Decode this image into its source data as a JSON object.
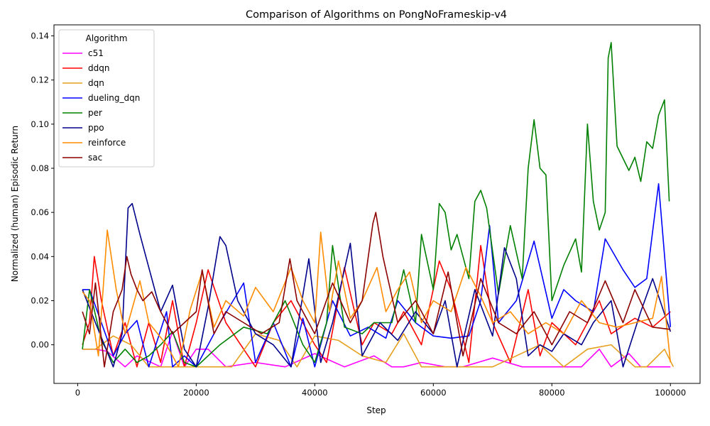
{
  "chart_data": {
    "type": "line",
    "title": "Comparison of Algorithms on PongNoFrameskip-v4",
    "xlabel": "Step",
    "ylabel": "Normalized (human) Episodic Return",
    "xlim": [
      -4000,
      105000
    ],
    "ylim": [
      -0.0175,
      0.145
    ],
    "x_ticks": [
      0,
      20000,
      40000,
      60000,
      80000,
      100000
    ],
    "x_tick_labels": [
      "0",
      "20000",
      "40000",
      "60000",
      "80000",
      "100000"
    ],
    "y_ticks": [
      0.0,
      0.02,
      0.04,
      0.06,
      0.08,
      0.1,
      0.12,
      0.14
    ],
    "y_tick_labels": [
      "0.00",
      "0.02",
      "0.04",
      "0.06",
      "0.08",
      "0.10",
      "0.12",
      "0.14"
    ],
    "grid": false,
    "legend": {
      "title": "Algorithm",
      "placement": "top-left"
    },
    "series": [
      {
        "name": "c51",
        "color": "#ff00ff",
        "x": [
          800,
          3000,
          5000,
          8000,
          10000,
          14000,
          16000,
          18000,
          20000,
          22000,
          25000,
          30000,
          35000,
          40000,
          45000,
          50000,
          53000,
          55000,
          58000,
          62000,
          65000,
          70000,
          75000,
          80000,
          85000,
          88000,
          90000,
          93000,
          95000,
          98000,
          100000
        ],
        "values": [
          -0.002,
          -0.002,
          -0.003,
          -0.01,
          -0.005,
          -0.01,
          0.006,
          -0.01,
          -0.002,
          -0.002,
          -0.01,
          -0.008,
          -0.01,
          -0.004,
          -0.01,
          -0.005,
          -0.01,
          -0.01,
          -0.008,
          -0.01,
          -0.01,
          -0.006,
          -0.01,
          -0.01,
          -0.01,
          -0.002,
          -0.01,
          -0.004,
          -0.01,
          -0.01,
          -0.01
        ]
      },
      {
        "name": "ddqn",
        "color": "#ff0000",
        "x": [
          800,
          2000,
          2800,
          4000,
          6000,
          8000,
          10000,
          12000,
          14000,
          16000,
          18000,
          20000,
          22000,
          25000,
          28000,
          30000,
          33000,
          36000,
          40000,
          42000,
          45000,
          48000,
          50000,
          53000,
          55000,
          58000,
          61000,
          63000,
          66000,
          68000,
          70000,
          73000,
          76000,
          78000,
          80000,
          84000,
          88000,
          90000,
          94000,
          97000,
          100000
        ],
        "values": [
          0.0,
          0.01,
          0.04,
          0.02,
          -0.005,
          0.01,
          -0.01,
          0.01,
          -0.008,
          0.02,
          -0.01,
          0.01,
          0.034,
          0.01,
          -0.002,
          -0.01,
          0.01,
          0.02,
          0.0,
          -0.008,
          0.035,
          0.0,
          0.01,
          0.005,
          0.015,
          0.0,
          0.038,
          0.025,
          -0.008,
          0.045,
          0.01,
          -0.008,
          0.025,
          -0.005,
          0.01,
          0.0,
          0.02,
          0.005,
          0.012,
          0.008,
          0.015
        ]
      },
      {
        "name": "dqn",
        "color": "#e6a01e",
        "x": [
          800,
          3000,
          6000,
          9000,
          12000,
          15000,
          18000,
          22000,
          26000,
          30000,
          34000,
          37000,
          40000,
          44000,
          48000,
          52000,
          55000,
          58000,
          62000,
          66000,
          70000,
          74000,
          78000,
          82000,
          86000,
          90000,
          94000,
          96000,
          99000,
          100500
        ],
        "values": [
          -0.002,
          -0.002,
          0.004,
          0.0,
          -0.01,
          -0.01,
          -0.01,
          -0.01,
          -0.01,
          0.005,
          0.002,
          -0.01,
          0.004,
          0.002,
          -0.005,
          -0.008,
          0.005,
          -0.01,
          -0.01,
          -0.01,
          -0.01,
          -0.005,
          0.0,
          -0.01,
          -0.002,
          0.0,
          -0.01,
          -0.01,
          -0.002,
          -0.01
        ]
      },
      {
        "name": "dueling_dqn",
        "color": "#0000ff",
        "x": [
          800,
          2000,
          4000,
          6000,
          8000,
          10000,
          12000,
          15000,
          16000,
          18000,
          20000,
          24000,
          28000,
          30000,
          33000,
          36000,
          38000,
          40000,
          43000,
          46000,
          49000,
          52000,
          54000,
          57000,
          60000,
          63000,
          66000,
          68000,
          69500,
          71000,
          74000,
          77000,
          80000,
          82000,
          84000,
          87000,
          89000,
          92000,
          94000,
          96000,
          98000,
          100000
        ],
        "values": [
          0.025,
          0.025,
          0.01,
          -0.005,
          0.005,
          0.011,
          -0.01,
          0.015,
          -0.01,
          -0.005,
          -0.01,
          0.01,
          0.028,
          -0.008,
          0.01,
          -0.01,
          0.012,
          -0.01,
          0.02,
          0.004,
          0.008,
          0.003,
          0.02,
          0.01,
          0.004,
          0.003,
          0.004,
          0.02,
          0.054,
          0.01,
          0.02,
          0.047,
          0.012,
          0.025,
          0.02,
          0.015,
          0.048,
          0.034,
          0.026,
          0.03,
          0.073,
          0.008
        ]
      },
      {
        "name": "per",
        "color": "#008000",
        "x": [
          800,
          2000,
          4000,
          6000,
          8000,
          10000,
          12000,
          14000,
          16000,
          18000,
          20000,
          24000,
          28000,
          32000,
          35000,
          38000,
          40000,
          42000,
          43000,
          45000,
          48000,
          50000,
          53000,
          55000,
          57000,
          58000,
          60000,
          61000,
          62000,
          63000,
          64000,
          66000,
          67000,
          68000,
          69000,
          71000,
          73000,
          75000,
          76000,
          77000,
          78000,
          79000,
          80000,
          82000,
          84000,
          85000,
          86000,
          87000,
          88000,
          89000,
          89500,
          90000,
          91000,
          93000,
          94000,
          95000,
          96000,
          97000,
          98000,
          99000,
          99800
        ],
        "values": [
          -0.002,
          0.025,
          0.002,
          -0.008,
          -0.002,
          -0.008,
          -0.005,
          0.0,
          0.006,
          -0.008,
          -0.01,
          0.0,
          0.008,
          0.005,
          0.02,
          0.0,
          -0.008,
          0.01,
          0.045,
          0.008,
          0.005,
          0.01,
          0.01,
          0.034,
          0.01,
          0.05,
          0.025,
          0.064,
          0.06,
          0.043,
          0.05,
          0.03,
          0.065,
          0.07,
          0.062,
          0.023,
          0.054,
          0.03,
          0.08,
          0.102,
          0.08,
          0.077,
          0.02,
          0.036,
          0.048,
          0.033,
          0.1,
          0.065,
          0.052,
          0.06,
          0.13,
          0.137,
          0.09,
          0.079,
          0.085,
          0.074,
          0.092,
          0.089,
          0.104,
          0.111,
          0.065
        ]
      },
      {
        "name": "ppo",
        "color": "#00008b",
        "x": [
          800,
          3000,
          6000,
          7500,
          8500,
          9200,
          10500,
          12000,
          14000,
          16000,
          18000,
          20000,
          22000,
          23800,
          24000,
          25000,
          27000,
          30000,
          33000,
          36000,
          39000,
          41000,
          43000,
          46000,
          48000,
          51000,
          54000,
          57000,
          60000,
          62000,
          64000,
          67000,
          70000,
          72000,
          74000,
          76000,
          78000,
          80000,
          82000,
          85000,
          87000,
          90000,
          92000,
          95000,
          97000,
          100000
        ],
        "values": [
          0.025,
          0.01,
          -0.01,
          0.005,
          0.062,
          0.064,
          0.05,
          0.035,
          0.015,
          0.027,
          -0.002,
          -0.01,
          0.017,
          0.046,
          0.049,
          0.045,
          0.02,
          0.005,
          0.0,
          -0.01,
          0.039,
          -0.008,
          0.01,
          0.046,
          -0.005,
          0.01,
          0.002,
          0.015,
          0.005,
          0.02,
          -0.01,
          0.025,
          0.004,
          0.044,
          0.03,
          -0.005,
          0.0,
          -0.003,
          0.005,
          0.0,
          0.01,
          0.02,
          -0.01,
          0.015,
          0.03,
          0.006
        ]
      },
      {
        "name": "reinforce",
        "color": "#ff8c00",
        "x": [
          800,
          2000,
          3500,
          5000,
          6500,
          8000,
          10500,
          12000,
          15000,
          17000,
          19000,
          21000,
          23000,
          25000,
          28000,
          30000,
          33000,
          36000,
          38000,
          40000,
          41000,
          42500,
          44000,
          46000,
          48000,
          50500,
          52000,
          54000,
          56000,
          58000,
          60000,
          63000,
          65500,
          68000,
          70000,
          73000,
          76000,
          79000,
          82000,
          85000,
          88000,
          91000,
          94000,
          97000,
          98500,
          100000
        ],
        "values": [
          0.024,
          0.02,
          -0.005,
          0.052,
          0.025,
          0.005,
          0.029,
          0.01,
          0.0,
          -0.01,
          0.016,
          0.033,
          0.008,
          0.02,
          0.013,
          0.026,
          0.015,
          0.035,
          0.02,
          0.01,
          0.051,
          0.015,
          0.038,
          0.012,
          0.02,
          0.035,
          0.015,
          0.025,
          0.033,
          0.01,
          0.02,
          0.015,
          0.035,
          0.022,
          0.01,
          0.015,
          0.005,
          0.01,
          0.005,
          0.02,
          0.01,
          0.008,
          0.01,
          0.012,
          0.031,
          -0.008
        ]
      },
      {
        "name": "sac",
        "color": "#8b0000",
        "x": [
          800,
          2000,
          3000,
          4500,
          6000,
          7500,
          8300,
          9000,
          10000,
          11000,
          12500,
          14000,
          16000,
          18000,
          20000,
          21000,
          23000,
          25000,
          28000,
          31000,
          34000,
          35800,
          37000,
          40000,
          43000,
          46000,
          48000,
          49800,
          50300,
          51500,
          54000,
          57000,
          60000,
          62500,
          65000,
          68000,
          71000,
          74000,
          77000,
          80000,
          83000,
          86000,
          89000,
          92000,
          94000,
          97000,
          100000
        ],
        "values": [
          0.015,
          0.005,
          0.028,
          -0.01,
          0.015,
          0.025,
          0.04,
          0.032,
          0.025,
          0.02,
          0.024,
          0.015,
          0.005,
          0.01,
          0.015,
          0.034,
          0.005,
          0.015,
          0.01,
          0.005,
          0.01,
          0.039,
          0.02,
          0.005,
          0.028,
          0.01,
          0.02,
          0.055,
          0.06,
          0.04,
          0.01,
          0.02,
          0.005,
          0.033,
          -0.005,
          0.03,
          0.01,
          0.005,
          0.015,
          0.0,
          0.015,
          0.01,
          0.029,
          0.01,
          0.025,
          0.008,
          0.007
        ]
      }
    ]
  }
}
